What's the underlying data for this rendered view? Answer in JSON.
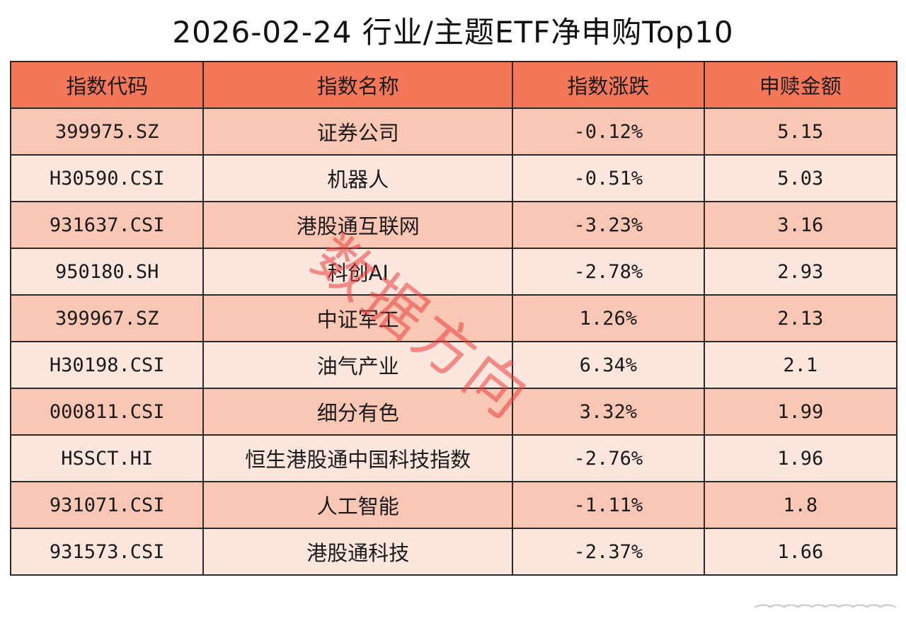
{
  "title": "2026-02-24 行业/主题ETF净申购Top10",
  "headers": [
    "指数代码",
    "指数名称",
    "指数涨跌",
    "申赎金额"
  ],
  "rows": [
    {
      "code": "399975.SZ",
      "name": "证券公司",
      "change": "-0.12%",
      "amount": "5.15"
    },
    {
      "code": "H30590.CSI",
      "name": "机器人",
      "change": "-0.51%",
      "amount": "5.03"
    },
    {
      "code": "931637.CSI",
      "name": "港股通互联网",
      "change": "-3.23%",
      "amount": "3.16"
    },
    {
      "code": "950180.SH",
      "name": "科创AI",
      "change": "-2.78%",
      "amount": "2.93"
    },
    {
      "code": "399967.SZ",
      "name": "中证军工",
      "change": "1.26%",
      "amount": "2.13"
    },
    {
      "code": "H30198.CSI",
      "name": "油气产业",
      "change": "6.34%",
      "amount": "2.1"
    },
    {
      "code": "000811.CSI",
      "name": "细分有色",
      "change": "3.32%",
      "amount": "1.99"
    },
    {
      "code": "HSSCT.HI",
      "name": "恒生港股通中国科技指数",
      "change": "-2.76%",
      "amount": "1.96"
    },
    {
      "code": "931071.CSI",
      "name": "人工智能",
      "change": "-1.11%",
      "amount": "1.8"
    },
    {
      "code": "931573.CSI",
      "name": "港股通科技",
      "change": "-2.37%",
      "amount": "1.66"
    }
  ],
  "watermark": "数据方向",
  "colors": {
    "header": "#f4775a",
    "row_odd": "#f9c7b4",
    "row_even": "#fde6dd",
    "watermark": "#eb3c3c"
  }
}
